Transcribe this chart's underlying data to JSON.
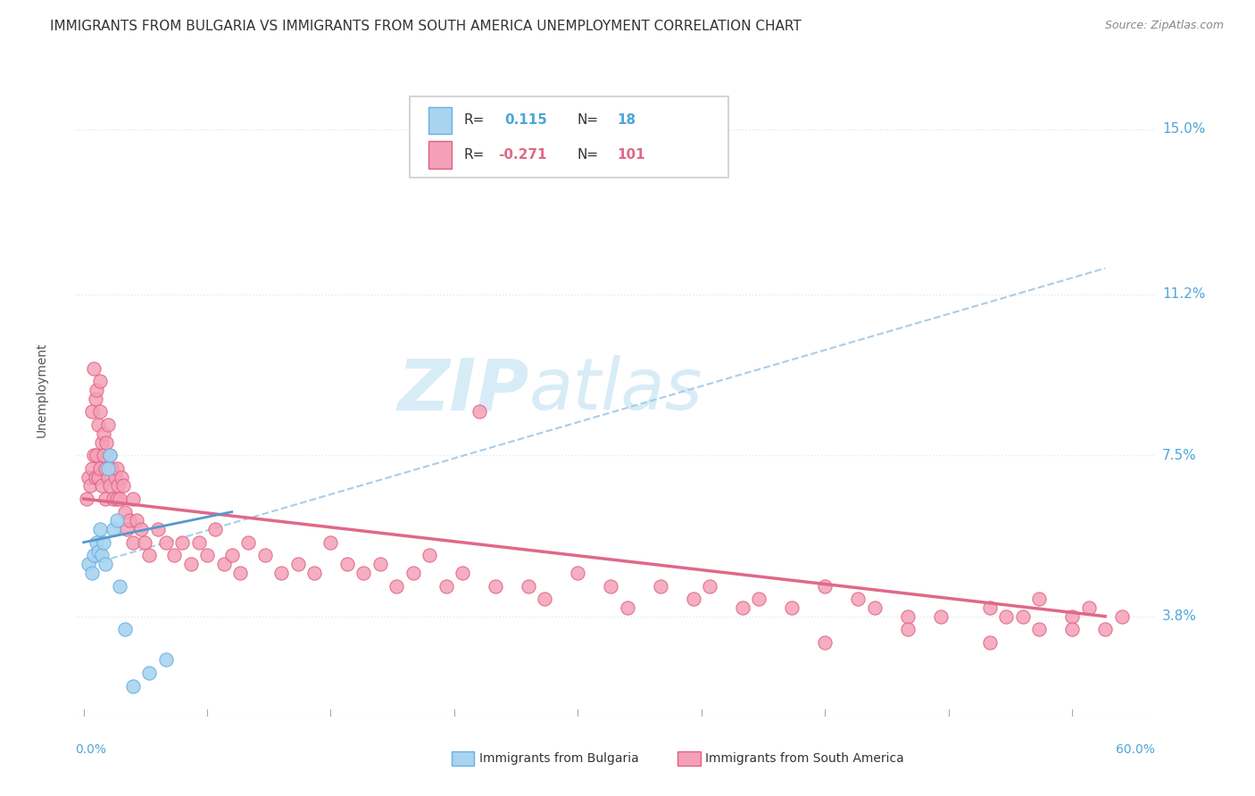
{
  "title": "IMMIGRANTS FROM BULGARIA VS IMMIGRANTS FROM SOUTH AMERICA UNEMPLOYMENT CORRELATION CHART",
  "source": "Source: ZipAtlas.com",
  "ylabel": "Unemployment",
  "y_ticks": [
    3.8,
    7.5,
    11.2,
    15.0
  ],
  "y_tick_labels": [
    "3.8%",
    "7.5%",
    "11.2%",
    "15.0%"
  ],
  "x_min": -0.5,
  "x_max": 65.0,
  "y_min": 1.5,
  "y_max": 16.5,
  "color_bulgaria": "#a8d4f0",
  "color_bulgaria_edge": "#6ab0e0",
  "color_south_america": "#f4a0b8",
  "color_south_america_edge": "#e06080",
  "color_sa_trend": "#e06888",
  "color_bg_trend": "#5599cc",
  "color_dash": "#a0c8e8",
  "watermark_color": "#c8e4f4",
  "watermark_alpha": 0.7,
  "bg_trend_start_x": 0.0,
  "bg_trend_end_x": 9.0,
  "bg_trend_start_y": 5.5,
  "bg_trend_end_y": 6.2,
  "sa_trend_start_x": 0.0,
  "sa_trend_end_x": 62.0,
  "sa_trend_start_y": 6.5,
  "sa_trend_end_y": 3.8,
  "dash_start_x": 0.5,
  "dash_end_x": 62.0,
  "dash_start_y": 5.0,
  "dash_end_y": 11.8,
  "scatter_bulgaria_x": [
    0.3,
    0.5,
    0.6,
    0.8,
    0.9,
    1.0,
    1.1,
    1.2,
    1.3,
    1.5,
    1.6,
    1.8,
    2.0,
    2.2,
    2.5,
    3.0,
    4.0,
    5.0
  ],
  "scatter_bulgaria_y": [
    5.0,
    4.8,
    5.2,
    5.5,
    5.3,
    5.8,
    5.2,
    5.5,
    5.0,
    7.2,
    7.5,
    5.8,
    6.0,
    4.5,
    3.5,
    2.2,
    2.5,
    2.8
  ],
  "scatter_sa_x": [
    0.2,
    0.3,
    0.4,
    0.5,
    0.5,
    0.6,
    0.6,
    0.7,
    0.7,
    0.8,
    0.8,
    0.9,
    0.9,
    1.0,
    1.0,
    1.0,
    1.1,
    1.1,
    1.2,
    1.2,
    1.3,
    1.3,
    1.4,
    1.5,
    1.5,
    1.6,
    1.6,
    1.7,
    1.8,
    1.9,
    2.0,
    2.0,
    2.1,
    2.2,
    2.3,
    2.4,
    2.5,
    2.6,
    2.8,
    3.0,
    3.0,
    3.2,
    3.5,
    3.7,
    4.0,
    4.5,
    5.0,
    5.5,
    6.0,
    6.5,
    7.0,
    7.5,
    8.0,
    8.5,
    9.0,
    9.5,
    10.0,
    11.0,
    12.0,
    13.0,
    14.0,
    15.0,
    16.0,
    17.0,
    18.0,
    19.0,
    20.0,
    21.0,
    22.0,
    23.0,
    24.0,
    25.0,
    27.0,
    28.0,
    30.0,
    32.0,
    33.0,
    35.0,
    37.0,
    38.0,
    40.0,
    41.0,
    43.0,
    45.0,
    47.0,
    48.0,
    50.0,
    52.0,
    55.0,
    57.0,
    58.0,
    60.0,
    61.0,
    62.0,
    63.0,
    45.0,
    50.0,
    55.0,
    56.0,
    58.0,
    60.0
  ],
  "scatter_sa_y": [
    6.5,
    7.0,
    6.8,
    8.5,
    7.2,
    9.5,
    7.5,
    8.8,
    7.0,
    9.0,
    7.5,
    8.2,
    7.0,
    8.5,
    7.2,
    9.2,
    7.8,
    6.8,
    8.0,
    7.5,
    7.2,
    6.5,
    7.8,
    8.2,
    7.0,
    7.5,
    6.8,
    7.2,
    6.5,
    7.0,
    7.2,
    6.5,
    6.8,
    6.5,
    7.0,
    6.8,
    6.2,
    5.8,
    6.0,
    6.5,
    5.5,
    6.0,
    5.8,
    5.5,
    5.2,
    5.8,
    5.5,
    5.2,
    5.5,
    5.0,
    5.5,
    5.2,
    5.8,
    5.0,
    5.2,
    4.8,
    5.5,
    5.2,
    4.8,
    5.0,
    4.8,
    5.5,
    5.0,
    4.8,
    5.0,
    4.5,
    4.8,
    5.2,
    4.5,
    4.8,
    8.5,
    4.5,
    4.5,
    4.2,
    4.8,
    4.5,
    4.0,
    4.5,
    4.2,
    4.5,
    4.0,
    4.2,
    4.0,
    4.5,
    4.2,
    4.0,
    3.8,
    3.8,
    4.0,
    3.8,
    4.2,
    3.8,
    4.0,
    3.5,
    3.8,
    3.2,
    3.5,
    3.2,
    3.8,
    3.5,
    3.5
  ],
  "title_fontsize": 11,
  "source_fontsize": 9,
  "ylabel_fontsize": 10,
  "tick_color": "#4da6d8",
  "grid_color": "#e0e8f0",
  "grid_style": "dotted"
}
